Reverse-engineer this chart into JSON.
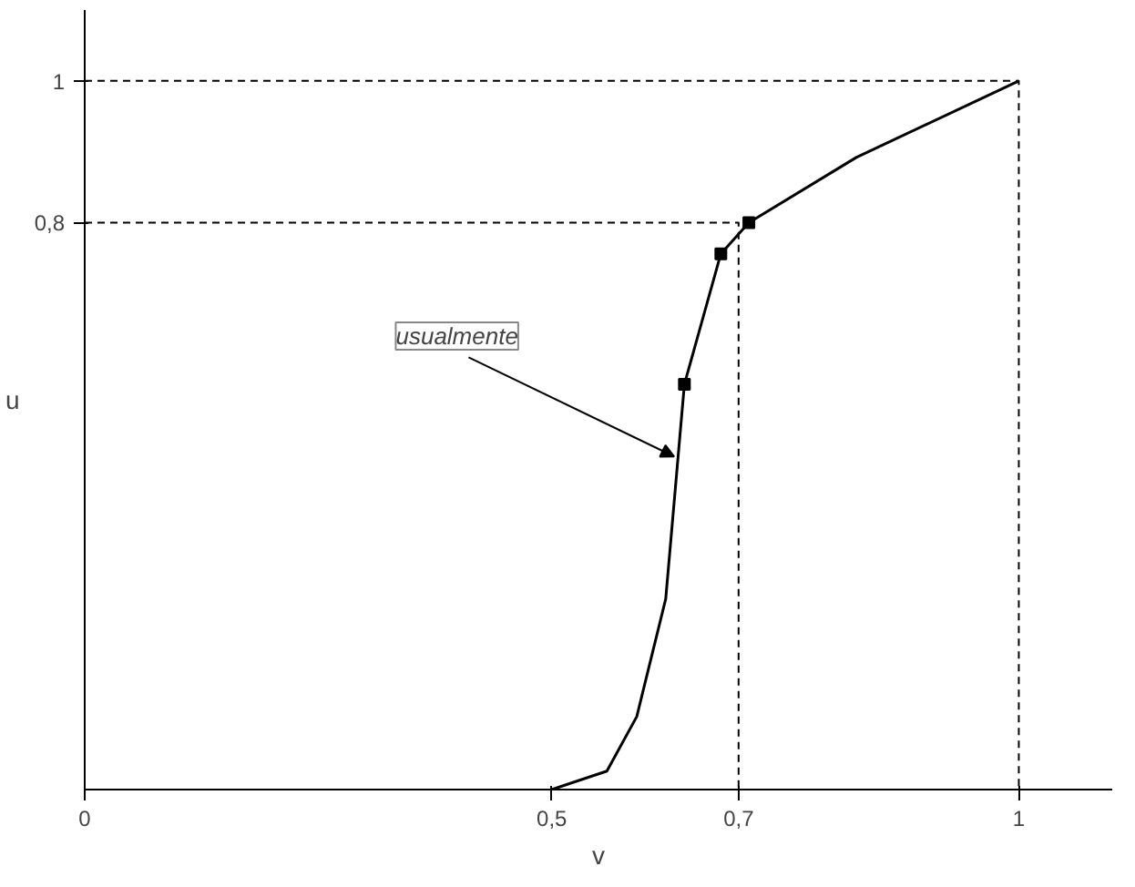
{
  "chart_data": {
    "type": "line",
    "xlabel": "v",
    "ylabel": "u",
    "xlim": [
      0,
      1.1
    ],
    "ylim": [
      0,
      1.1
    ],
    "xticks": [
      0,
      {
        "value": 0.5,
        "label": "0,5"
      },
      {
        "value": 0.7,
        "label": "0,7"
      },
      1
    ],
    "yticks": [
      {
        "value": 0.8,
        "label": "0,8"
      },
      1
    ],
    "grid": false,
    "series": [
      {
        "color": "#000000",
        "marker": "none",
        "line_style": "solid",
        "x": [
          0.5,
          0.559,
          0.591,
          0.622,
          0.642,
          0.681,
          0.711,
          0.826,
          1
        ],
        "values": [
          0,
          0.026,
          0.103,
          0.269,
          0.572,
          0.756,
          0.8,
          0.892,
          1
        ]
      },
      {
        "type": "scatter",
        "color": "#000000",
        "marker": "square",
        "x": [
          0.642,
          0.681,
          0.711
        ],
        "values": [
          0.572,
          0.756,
          0.8
        ]
      },
      {
        "color": "#000000",
        "marker": "none",
        "line_style": "dashed",
        "x": [
          0,
          0.7,
          0.7
        ],
        "values": [
          0.8,
          0.8,
          0
        ]
      },
      {
        "color": "#000000",
        "marker": "none",
        "line_style": "dashed",
        "x": [
          0,
          1,
          1
        ],
        "values": [
          1,
          1,
          0
        ]
      }
    ],
    "annotations": [
      {
        "text": "usualmente",
        "x": 0.631,
        "y": 0.47
      }
    ]
  }
}
